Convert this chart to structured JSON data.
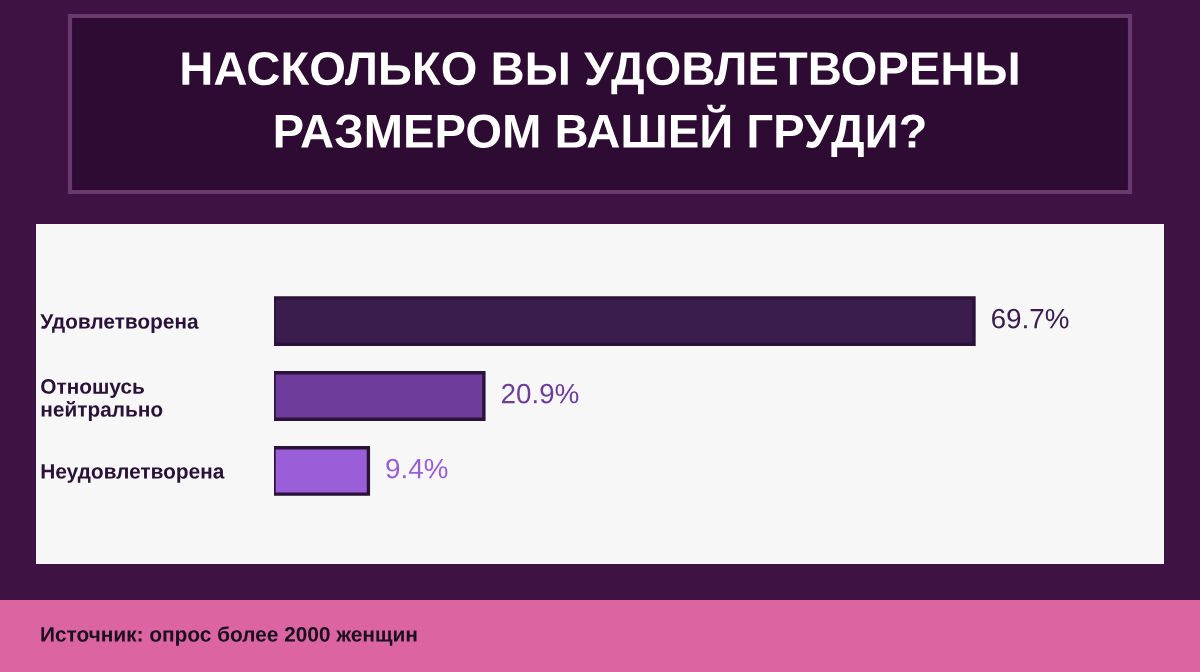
{
  "chart_data": {
    "type": "bar",
    "orientation": "horizontal",
    "title": "НАСКОЛЬКО ВЫ УДОВЛЕТВОРЕНЫ\nРАЗМЕРОМ ВАШЕЙ ГРУДИ?",
    "categories": [
      "Удовлетворена",
      "Отношусь\nнейтрально",
      "Неудовлетворена"
    ],
    "values": [
      69.7,
      20.9,
      9.4
    ],
    "colors": [
      "#3b1d4d",
      "#6e3d9c",
      "#9a5ed8"
    ],
    "value_labels": [
      "69.7%",
      "20.9%",
      "9.4%"
    ],
    "annotations": [
      "Источник: опрос более 2000 женщин"
    ]
  }
}
